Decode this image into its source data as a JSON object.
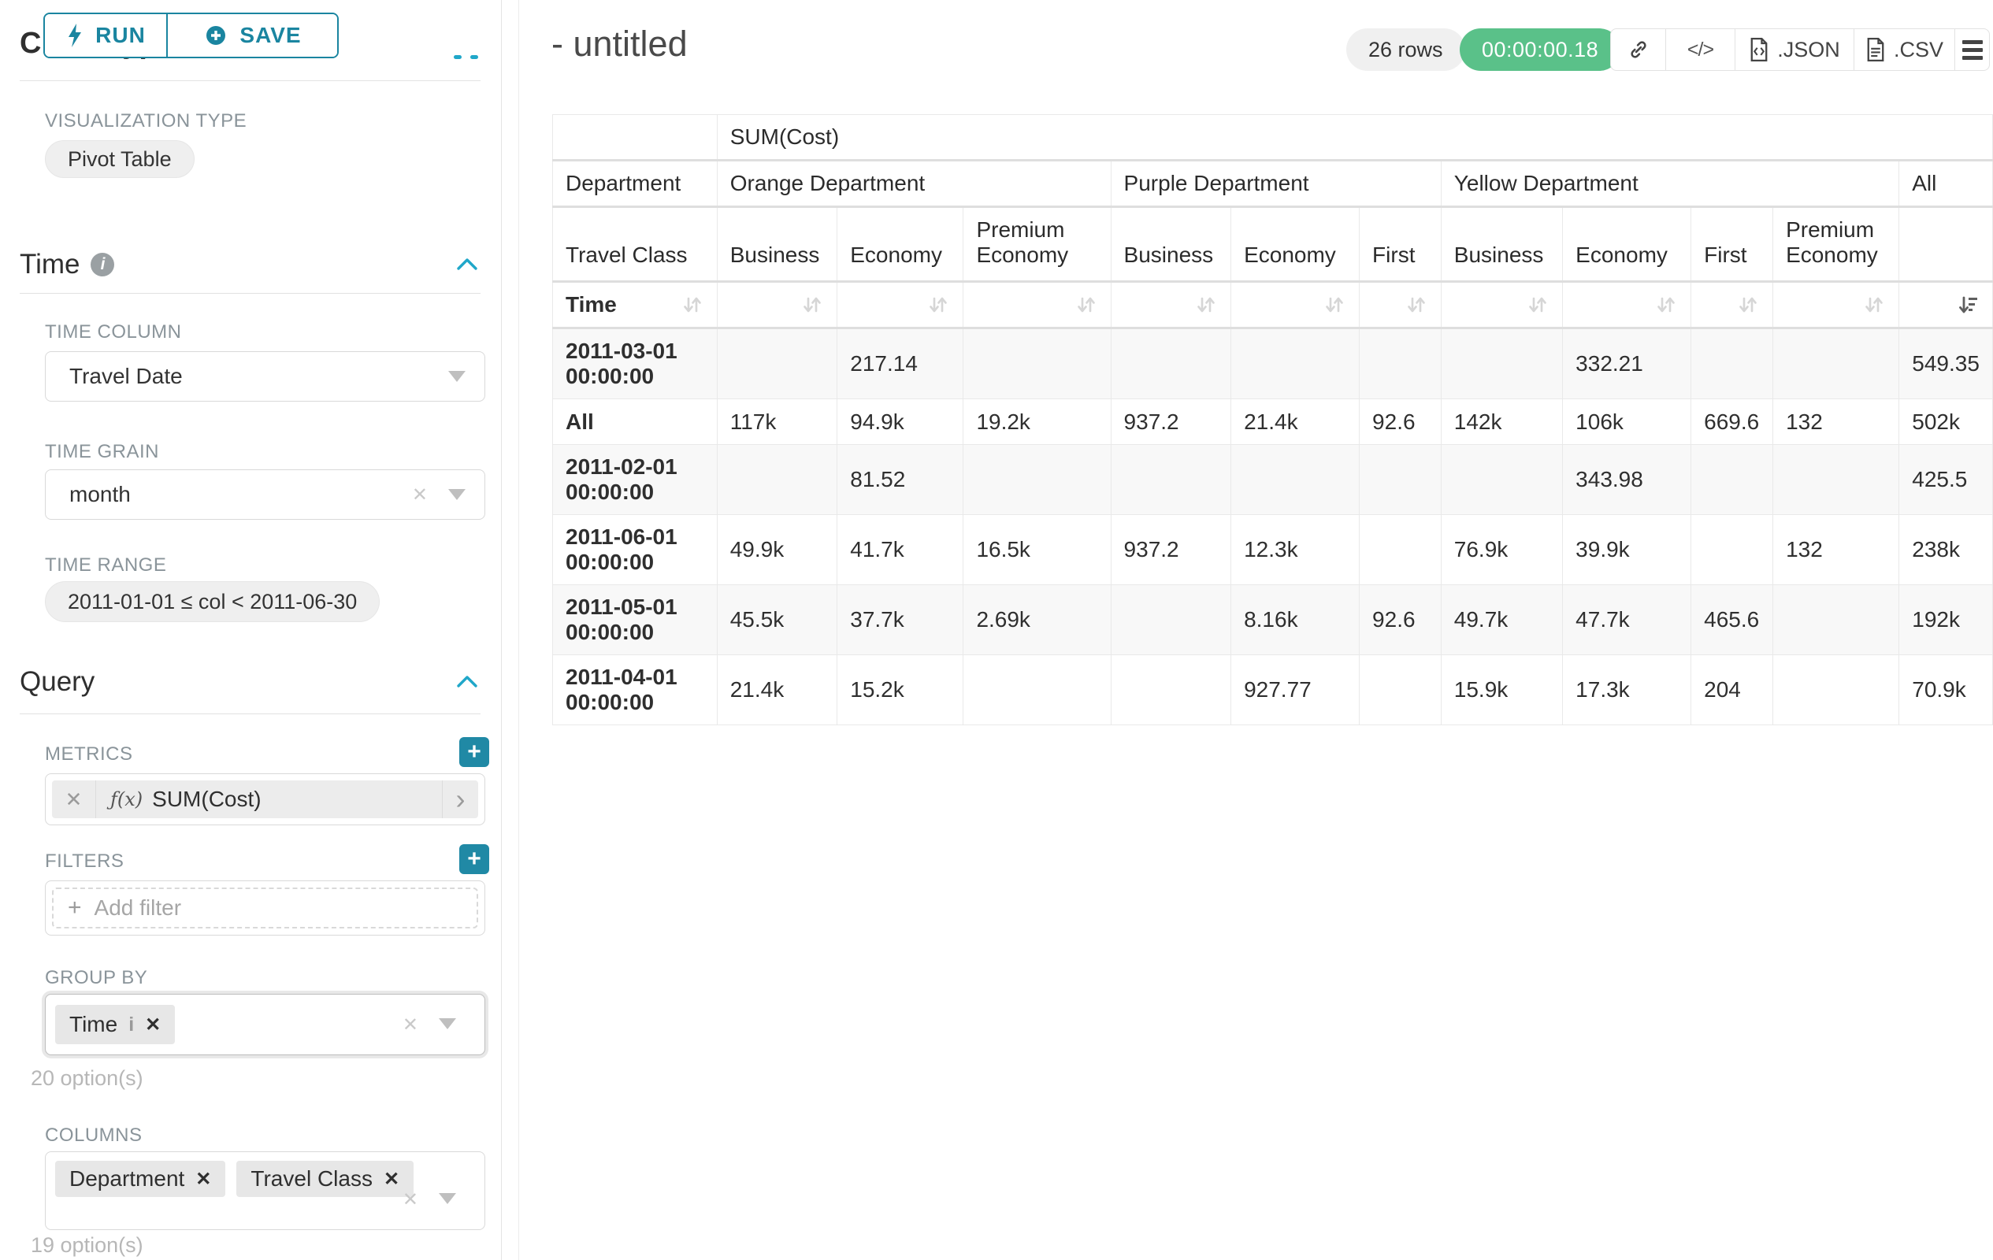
{
  "colors": {
    "accent": "#1a85a0",
    "accent_light": "#20a7c9",
    "success": "#5ac189"
  },
  "icons": {
    "close": "✕",
    "chevron_right": "›",
    "plus": "+",
    "info": "i",
    "code": "</>"
  },
  "sidebar": {
    "run_label": "RUN",
    "save_label": "SAVE",
    "chart_type_heading": "Chart Type",
    "visualization": {
      "label": "VISUALIZATION TYPE",
      "value": "Pivot Table"
    },
    "time": {
      "title": "Time",
      "time_column": {
        "label": "TIME COLUMN",
        "value": "Travel Date"
      },
      "time_grain": {
        "label": "TIME GRAIN",
        "value": "month"
      },
      "time_range": {
        "label": "TIME RANGE",
        "value": "2011-01-01 ≤ col < 2011-06-30"
      }
    },
    "query": {
      "title": "Query",
      "metrics": {
        "label": "METRICS",
        "fx": "ƒ(x)",
        "value": "SUM(Cost)"
      },
      "filters": {
        "label": "FILTERS",
        "placeholder": "Add filter"
      },
      "group_by": {
        "label": "GROUP BY",
        "chips": [
          "Time"
        ],
        "hint": "20 option(s)"
      },
      "columns": {
        "label": "COLUMNS",
        "chips": [
          "Department",
          "Travel Class"
        ],
        "hint": "19 option(s)"
      }
    }
  },
  "header": {
    "title": "- untitled",
    "rows_badge": "26 rows",
    "timer": "00:00:00.18",
    "json_label": ".JSON",
    "csv_label": ".CSV"
  },
  "pivot": {
    "metric_header": "SUM(Cost)",
    "corner": {
      "department": "Department",
      "travel_class": "Travel Class",
      "time": "Time"
    },
    "departments": [
      {
        "name": "Orange Department",
        "classes": [
          "Business",
          "Economy",
          "Premium Economy"
        ]
      },
      {
        "name": "Purple Department",
        "classes": [
          "Business",
          "Economy",
          "First"
        ]
      },
      {
        "name": "Yellow Department",
        "classes": [
          "Business",
          "Economy",
          "First",
          "Premium Economy"
        ]
      },
      {
        "name": "All",
        "classes": [
          ""
        ]
      }
    ],
    "rows": [
      {
        "label": "2011-03-01 00:00:00",
        "values": [
          "",
          "217.14",
          "",
          "",
          "",
          "",
          "",
          "332.21",
          "",
          "",
          "549.35"
        ]
      },
      {
        "label": "All",
        "values": [
          "117k",
          "94.9k",
          "19.2k",
          "937.2",
          "21.4k",
          "92.6",
          "142k",
          "106k",
          "669.6",
          "132",
          "502k"
        ]
      },
      {
        "label": "2011-02-01 00:00:00",
        "values": [
          "",
          "81.52",
          "",
          "",
          "",
          "",
          "",
          "343.98",
          "",
          "",
          "425.5"
        ]
      },
      {
        "label": "2011-06-01 00:00:00",
        "values": [
          "49.9k",
          "41.7k",
          "16.5k",
          "937.2",
          "12.3k",
          "",
          "76.9k",
          "39.9k",
          "",
          "132",
          "238k"
        ]
      },
      {
        "label": "2011-05-01 00:00:00",
        "values": [
          "45.5k",
          "37.7k",
          "2.69k",
          "",
          "8.16k",
          "92.6",
          "49.7k",
          "47.7k",
          "465.6",
          "",
          "192k"
        ]
      },
      {
        "label": "2011-04-01 00:00:00",
        "values": [
          "21.4k",
          "15.2k",
          "",
          "",
          "927.77",
          "",
          "15.9k",
          "17.3k",
          "204",
          "",
          "70.9k"
        ]
      }
    ],
    "sort_state": {
      "sorted_column": "All",
      "direction": "desc"
    }
  }
}
